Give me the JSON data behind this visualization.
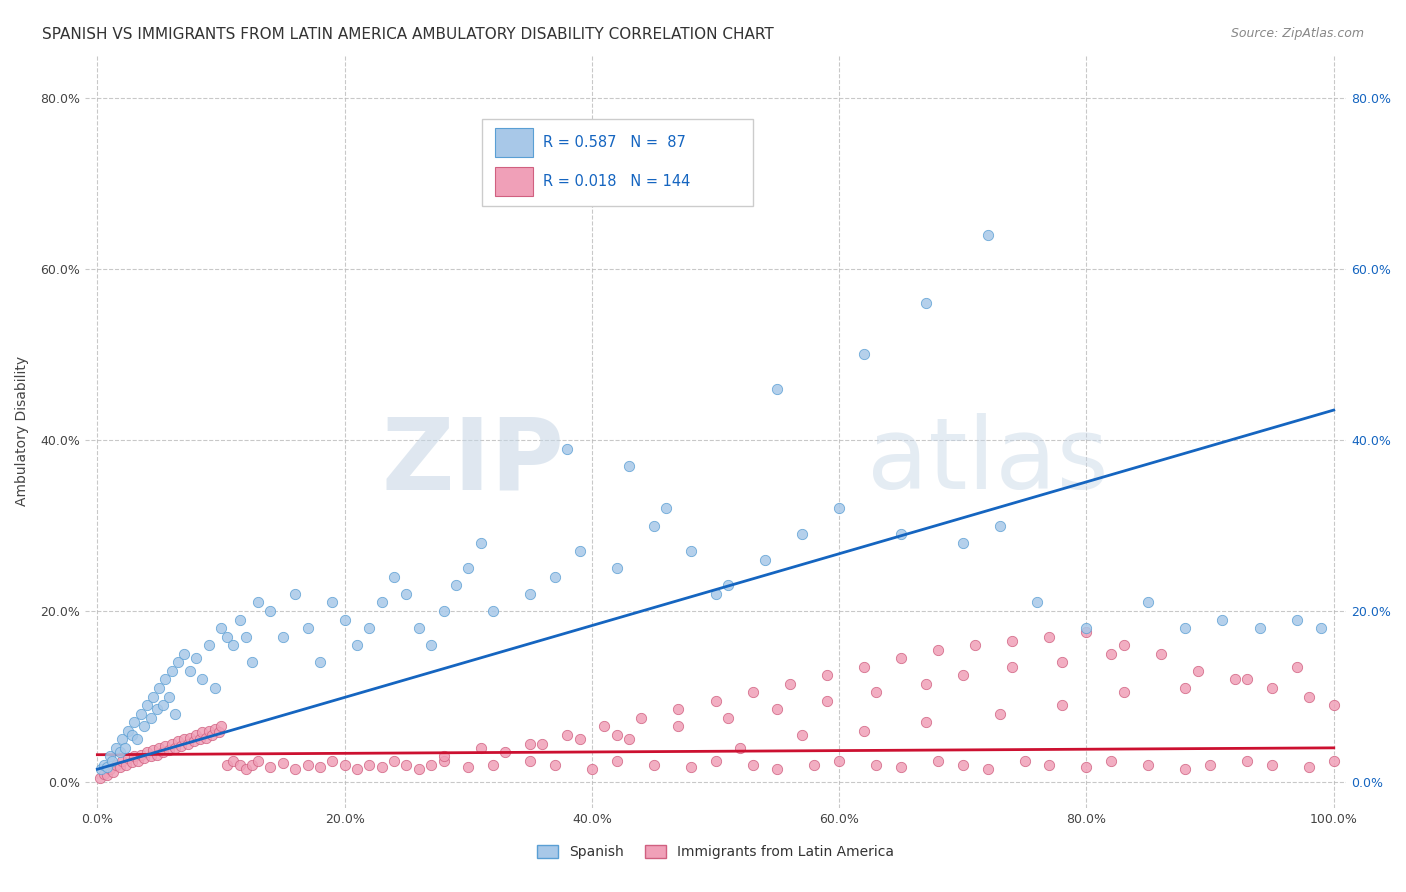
{
  "title": "SPANISH VS IMMIGRANTS FROM LATIN AMERICA AMBULATORY DISABILITY CORRELATION CHART",
  "source": "Source: ZipAtlas.com",
  "ylabel": "Ambulatory Disability",
  "background_color": "#ffffff",
  "watermark_text": "ZIP",
  "watermark_text2": "atlas",
  "series": [
    {
      "name": "Spanish",
      "color": "#a8c8e8",
      "edge_color": "#5a9fd4",
      "R": 0.587,
      "N": 87,
      "x": [
        0.3,
        0.5,
        0.8,
        1.0,
        1.2,
        1.5,
        1.8,
        2.0,
        2.2,
        2.5,
        2.8,
        3.0,
        3.2,
        3.5,
        3.8,
        4.0,
        4.3,
        4.5,
        4.8,
        5.0,
        5.3,
        5.5,
        5.8,
        6.0,
        6.3,
        6.5,
        7.0,
        7.5,
        8.0,
        8.5,
        9.0,
        9.5,
        10.0,
        10.5,
        11.0,
        11.5,
        12.0,
        12.5,
        13.0,
        14.0,
        15.0,
        16.0,
        17.0,
        18.0,
        19.0,
        20.0,
        21.0,
        22.0,
        23.0,
        24.0,
        25.0,
        26.0,
        27.0,
        28.0,
        29.0,
        30.0,
        32.0,
        35.0,
        37.0,
        39.0,
        42.0,
        45.0,
        48.0,
        51.0,
        54.0,
        57.0,
        60.0,
        65.0,
        70.0,
        73.0,
        76.0,
        80.0,
        85.0,
        88.0,
        91.0,
        94.0,
        97.0,
        99.0,
        50.0,
        62.0,
        67.0,
        72.0,
        55.0,
        38.0,
        43.0,
        46.0,
        31.0
      ],
      "y": [
        1.5,
        2.0,
        1.8,
        3.0,
        2.5,
        4.0,
        3.5,
        5.0,
        4.0,
        6.0,
        5.5,
        7.0,
        5.0,
        8.0,
        6.5,
        9.0,
        7.5,
        10.0,
        8.5,
        11.0,
        9.0,
        12.0,
        10.0,
        13.0,
        8.0,
        14.0,
        15.0,
        13.0,
        14.5,
        12.0,
        16.0,
        11.0,
        18.0,
        17.0,
        16.0,
        19.0,
        17.0,
        14.0,
        21.0,
        20.0,
        17.0,
        22.0,
        18.0,
        14.0,
        21.0,
        19.0,
        16.0,
        18.0,
        21.0,
        24.0,
        22.0,
        18.0,
        16.0,
        20.0,
        23.0,
        25.0,
        20.0,
        22.0,
        24.0,
        27.0,
        25.0,
        30.0,
        27.0,
        23.0,
        26.0,
        29.0,
        32.0,
        29.0,
        28.0,
        30.0,
        21.0,
        18.0,
        21.0,
        18.0,
        19.0,
        18.0,
        19.0,
        18.0,
        22.0,
        50.0,
        56.0,
        64.0,
        46.0,
        39.0,
        37.0,
        32.0,
        28.0
      ],
      "trend_color": "#1565c0",
      "trend_x": [
        0.0,
        100.0
      ],
      "trend_y": [
        1.5,
        43.5
      ]
    },
    {
      "name": "Immigrants from Latin America",
      "color": "#f0a0b8",
      "edge_color": "#d06080",
      "R": 0.018,
      "N": 144,
      "x": [
        0.2,
        0.5,
        0.8,
        1.0,
        1.3,
        1.5,
        1.8,
        2.0,
        2.3,
        2.5,
        2.8,
        3.0,
        3.3,
        3.5,
        3.8,
        4.0,
        4.3,
        4.5,
        4.8,
        5.0,
        5.3,
        5.5,
        5.8,
        6.0,
        6.3,
        6.5,
        6.8,
        7.0,
        7.3,
        7.5,
        7.8,
        8.0,
        8.3,
        8.5,
        8.8,
        9.0,
        9.3,
        9.5,
        9.8,
        10.0,
        10.5,
        11.0,
        11.5,
        12.0,
        12.5,
        13.0,
        14.0,
        15.0,
        16.0,
        17.0,
        18.0,
        19.0,
        20.0,
        21.0,
        22.0,
        23.0,
        24.0,
        25.0,
        26.0,
        27.0,
        28.0,
        30.0,
        32.0,
        35.0,
        37.0,
        40.0,
        42.0,
        45.0,
        48.0,
        50.0,
        53.0,
        55.0,
        58.0,
        60.0,
        63.0,
        65.0,
        68.0,
        70.0,
        72.0,
        75.0,
        77.0,
        80.0,
        82.0,
        85.0,
        88.0,
        90.0,
        93.0,
        95.0,
        98.0,
        100.0,
        52.0,
        57.0,
        62.0,
        67.0,
        73.0,
        78.0,
        83.0,
        88.0,
        93.0,
        97.0,
        43.0,
        47.0,
        51.0,
        55.0,
        59.0,
        63.0,
        67.0,
        70.0,
        74.0,
        78.0,
        82.0,
        35.0,
        38.0,
        41.0,
        44.0,
        47.0,
        50.0,
        53.0,
        56.0,
        59.0,
        62.0,
        65.0,
        68.0,
        71.0,
        74.0,
        77.0,
        80.0,
        83.0,
        86.0,
        89.0,
        92.0,
        95.0,
        98.0,
        100.0,
        28.0,
        31.0,
        33.0,
        36.0,
        39.0,
        42.0
      ],
      "y": [
        0.5,
        1.0,
        0.8,
        1.5,
        1.2,
        2.0,
        1.8,
        2.5,
        2.0,
        2.8,
        2.3,
        3.0,
        2.5,
        3.2,
        2.8,
        3.5,
        3.0,
        3.8,
        3.2,
        4.0,
        3.5,
        4.2,
        3.8,
        4.5,
        4.0,
        4.8,
        4.2,
        5.0,
        4.5,
        5.2,
        4.8,
        5.5,
        5.0,
        5.8,
        5.2,
        6.0,
        5.5,
        6.2,
        5.8,
        6.5,
        2.0,
        2.5,
        2.0,
        1.5,
        2.0,
        2.5,
        1.8,
        2.2,
        1.5,
        2.0,
        1.8,
        2.5,
        2.0,
        1.5,
        2.0,
        1.8,
        2.5,
        2.0,
        1.5,
        2.0,
        2.5,
        1.8,
        2.0,
        2.5,
        2.0,
        1.5,
        2.5,
        2.0,
        1.8,
        2.5,
        2.0,
        1.5,
        2.0,
        2.5,
        2.0,
        1.8,
        2.5,
        2.0,
        1.5,
        2.5,
        2.0,
        1.8,
        2.5,
        2.0,
        1.5,
        2.0,
        2.5,
        2.0,
        1.8,
        2.5,
        4.0,
        5.5,
        6.0,
        7.0,
        8.0,
        9.0,
        10.5,
        11.0,
        12.0,
        13.5,
        5.0,
        6.5,
        7.5,
        8.5,
        9.5,
        10.5,
        11.5,
        12.5,
        13.5,
        14.0,
        15.0,
        4.5,
        5.5,
        6.5,
        7.5,
        8.5,
        9.5,
        10.5,
        11.5,
        12.5,
        13.5,
        14.5,
        15.5,
        16.0,
        16.5,
        17.0,
        17.5,
        16.0,
        15.0,
        13.0,
        12.0,
        11.0,
        10.0,
        9.0,
        3.0,
        4.0,
        3.5,
        4.5,
        5.0,
        5.5
      ],
      "trend_color": "#cc1030",
      "trend_x": [
        0.0,
        100.0
      ],
      "trend_y": [
        3.2,
        4.0
      ]
    }
  ],
  "xlim": [
    -1,
    101
  ],
  "ylim": [
    -3,
    85
  ],
  "yticks": [
    0,
    20,
    40,
    60,
    80
  ],
  "ytick_labels": [
    "0.0%",
    "20.0%",
    "40.0%",
    "60.0%",
    "80.0%"
  ],
  "xticks": [
    0,
    20,
    40,
    60,
    80,
    100
  ],
  "xtick_labels": [
    "0.0%",
    "20.0%",
    "40.0%",
    "60.0%",
    "80.0%",
    "100.0%"
  ],
  "grid_color": "#bbbbbb",
  "title_fontsize": 11,
  "axis_fontsize": 10,
  "tick_fontsize": 9
}
